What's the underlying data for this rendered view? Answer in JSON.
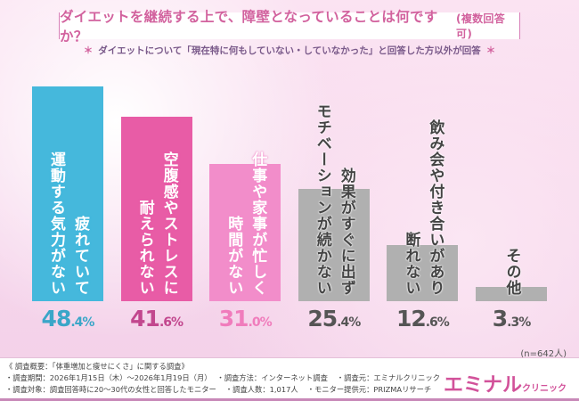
{
  "title": "ダイエットを継続する上で、障壁となっていることは何ですか？",
  "title_note": "(複数回答可)",
  "subtitle": "ダイエットについて「現在特に何もしていない・していなかった」と回答した方以外が回答",
  "subtitle_mark": "＊",
  "sample": "(n=642人)",
  "chart_data": {
    "type": "bar",
    "unit": "%",
    "categories": [
      {
        "lines": [
          "疲れていて",
          "運動する気力がない"
        ]
      },
      {
        "lines": [
          "空腹感やストレスに",
          "耐えられない"
        ]
      },
      {
        "lines": [
          "仕事や家事が忙しく",
          "時間がない"
        ]
      },
      {
        "lines": [
          "効果がすぐに出ず",
          "モチベーションが続かない"
        ]
      },
      {
        "lines": [
          "飲み会や付き合いがあり",
          "断れない"
        ]
      },
      {
        "lines": [
          "その他"
        ]
      }
    ],
    "values": [
      48.4,
      41.6,
      31.0,
      25.4,
      12.6,
      3.3
    ],
    "colors": [
      "#45b8dc",
      "#e85ca6",
      "#f28dca",
      "#b0b0b0",
      "#b0b0b0",
      "#b0b0b0"
    ],
    "value_colors": [
      "#3aa6c8",
      "#c2478e",
      "#f07cbc",
      "#555555",
      "#555555",
      "#555555"
    ],
    "ylim": [
      0,
      50
    ]
  },
  "footer": {
    "heading": "《 調査概要：「体重増加と痩せにくさ」に関する調査》",
    "period": "・調査期間：2026年1月15日（木）～2026年1月19日（月）",
    "method": "・調査方法：インターネット調査",
    "source": "・調査元：エミナルクリニック",
    "target": "・調査対象：調査回答時に20～30代の女性と回答したモニター",
    "count": "・調査人数：1,017人",
    "provider": "・モニター提供元：PRIZMAリサーチ",
    "logo": "エミナル",
    "logo_sub": "クリニック"
  }
}
